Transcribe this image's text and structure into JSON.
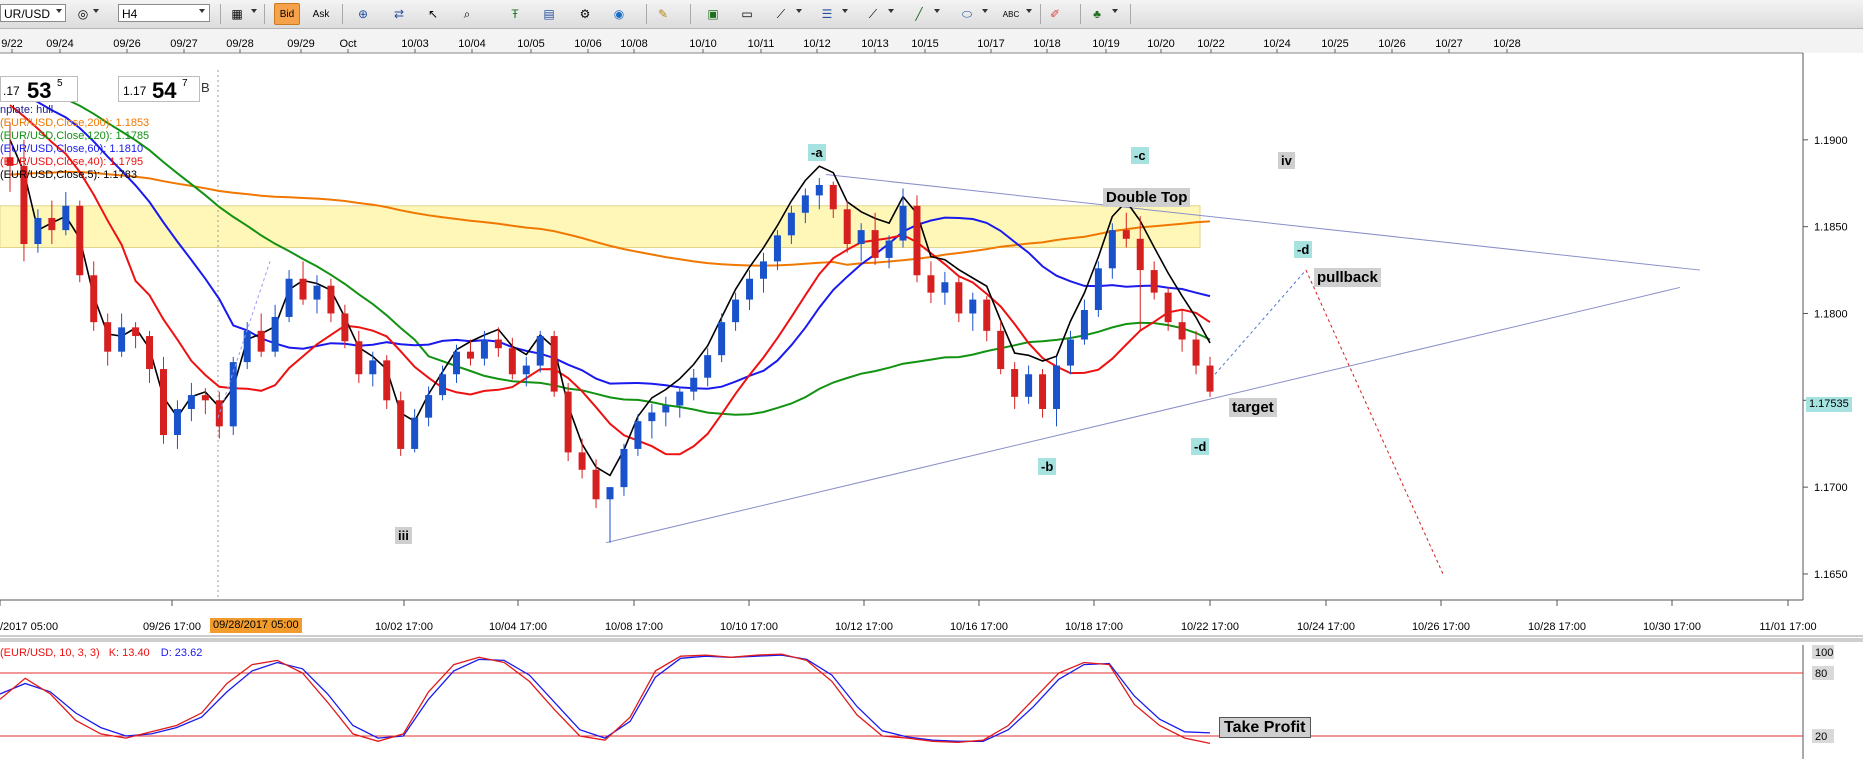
{
  "toolbar": {
    "symbol": "UR/USD",
    "timeframe": "H4",
    "bid_label": "Bid",
    "ask_label": "Ask",
    "icons": [
      "drawing-icon",
      "bar-chart-icon",
      "candles-icon",
      "zoom-icon",
      "template-icon",
      "indicator-icon",
      "settings-icon",
      "globe-icon",
      "ruler-icon",
      "picture-icon",
      "window-icon",
      "trendline-icon",
      "hline-icon",
      "fib-icon",
      "line-icon",
      "ellipse-icon",
      "text-abc-icon",
      "eraser-icon",
      "objects-icon"
    ]
  },
  "quote": {
    "bid_prefix": ".17",
    "bid_big": "53",
    "bid_sup": "5",
    "ask_prefix": "1.17",
    "ask_big": "54",
    "ask_sup": "7",
    "tag": "B"
  },
  "indicators": [
    {
      "text": "nplate: hull",
      "color": "#1a1a8c"
    },
    {
      "text": "(EUR/USD,Close,200): 1.1853",
      "color": "#f07800"
    },
    {
      "text": "(EUR/USD,Close,120): 1.1785",
      "color": "#129212"
    },
    {
      "text": "(EUR/USD,Close,60): 1.1810",
      "color": "#1a1aee"
    },
    {
      "text": "(EUR/USD,Close,40): 1.1795",
      "color": "#ee1111"
    },
    {
      "text": "(EUR/USD,Close,5): 1.1783",
      "color": "#000000"
    }
  ],
  "annotations": {
    "a": "-a",
    "b": "-b",
    "c": "-c",
    "d_upper": "-d",
    "d_lower": "-d",
    "iv": "iv",
    "iii": "iii",
    "double_top": "Double Top",
    "pullback": "pullback",
    "target": "target",
    "take_profit": "Take Profit"
  },
  "oscillator_label": {
    "name": "(EUR/USD, 10, 3, 3)",
    "k": "K: 13.40",
    "d": "D: 23.62"
  },
  "chart_data": {
    "type": "line",
    "instrument": "EUR/USD",
    "timeframe": "H4",
    "top_date_labels": [
      "9/22",
      "09/24",
      "09/26",
      "09/27",
      "09/28",
      "09/29",
      "Oct",
      "10/03",
      "10/04",
      "10/05",
      "10/06",
      "10/08",
      "10/10",
      "10/11",
      "10/12",
      "10/13",
      "10/15",
      "10/17",
      "10/18",
      "10/19",
      "10/20",
      "10/22",
      "10/24",
      "10/25",
      "10/26",
      "10/27",
      "10/28"
    ],
    "bottom_time_labels": [
      "/2017 05:00",
      "09/26 17:00",
      "10/02 17:00",
      "10/04 17:00",
      "10/08 17:00",
      "10/10 17:00",
      "10/12 17:00",
      "10/16 17:00",
      "10/18 17:00",
      "10/22 17:00",
      "10/24 17:00",
      "10/26 17:00",
      "10/28 17:00",
      "10/30 17:00",
      "11/01 17:00"
    ],
    "cursor_time": "09/28/2017 05:00",
    "price_axis": {
      "ticks": [
        "1.1900",
        "1.1850",
        "1.1800",
        "1.1750",
        "1.1700",
        "1.1650"
      ],
      "ylim": [
        1.1635,
        1.195
      ]
    },
    "current_price": "1.17535",
    "resistance_zone": [
      1.1838,
      1.1862
    ],
    "candles": [
      [
        1.189,
        1.191,
        1.187,
        1.1885
      ],
      [
        1.1885,
        1.19,
        1.183,
        1.184
      ],
      [
        1.184,
        1.186,
        1.1835,
        1.1855
      ],
      [
        1.1855,
        1.1865,
        1.184,
        1.1848
      ],
      [
        1.1848,
        1.187,
        1.1845,
        1.1862
      ],
      [
        1.1862,
        1.1865,
        1.1818,
        1.1822
      ],
      [
        1.1822,
        1.183,
        1.179,
        1.1795
      ],
      [
        1.1795,
        1.18,
        1.177,
        1.1778
      ],
      [
        1.1778,
        1.18,
        1.1775,
        1.1792
      ],
      [
        1.1792,
        1.1795,
        1.178,
        1.1787
      ],
      [
        1.1787,
        1.179,
        1.176,
        1.1768
      ],
      [
        1.1768,
        1.1775,
        1.1725,
        1.173
      ],
      [
        1.173,
        1.175,
        1.1722,
        1.1745
      ],
      [
        1.1745,
        1.176,
        1.1738,
        1.1753
      ],
      [
        1.1753,
        1.1757,
        1.1742,
        1.175
      ],
      [
        1.175,
        1.1755,
        1.1728,
        1.1735
      ],
      [
        1.1735,
        1.1775,
        1.173,
        1.1772
      ],
      [
        1.1772,
        1.1795,
        1.1768,
        1.179
      ],
      [
        1.179,
        1.18,
        1.1775,
        1.1778
      ],
      [
        1.1778,
        1.1805,
        1.1775,
        1.1798
      ],
      [
        1.1798,
        1.1825,
        1.1795,
        1.182
      ],
      [
        1.182,
        1.183,
        1.1805,
        1.1808
      ],
      [
        1.1808,
        1.1822,
        1.18,
        1.1816
      ],
      [
        1.1816,
        1.182,
        1.1795,
        1.18
      ],
      [
        1.18,
        1.1805,
        1.178,
        1.1784
      ],
      [
        1.1784,
        1.179,
        1.176,
        1.1765
      ],
      [
        1.1765,
        1.1778,
        1.1758,
        1.1773
      ],
      [
        1.1773,
        1.1776,
        1.1745,
        1.175
      ],
      [
        1.175,
        1.1755,
        1.1718,
        1.1722
      ],
      [
        1.1722,
        1.1745,
        1.172,
        1.174
      ],
      [
        1.174,
        1.1758,
        1.1735,
        1.1753
      ],
      [
        1.1753,
        1.177,
        1.175,
        1.1765
      ],
      [
        1.1765,
        1.1782,
        1.176,
        1.1778
      ],
      [
        1.1778,
        1.1785,
        1.177,
        1.1774
      ],
      [
        1.1774,
        1.179,
        1.177,
        1.1785
      ],
      [
        1.1785,
        1.1792,
        1.1775,
        1.178
      ],
      [
        1.178,
        1.1786,
        1.1762,
        1.1765
      ],
      [
        1.1765,
        1.1775,
        1.1758,
        1.177
      ],
      [
        1.177,
        1.179,
        1.1766,
        1.1787
      ],
      [
        1.1787,
        1.179,
        1.1752,
        1.1755
      ],
      [
        1.1755,
        1.176,
        1.1715,
        1.172
      ],
      [
        1.172,
        1.1728,
        1.1705,
        1.171
      ],
      [
        1.171,
        1.1716,
        1.1688,
        1.1693
      ],
      [
        1.1693,
        1.17,
        1.1668,
        1.17
      ],
      [
        1.17,
        1.1725,
        1.1695,
        1.1722
      ],
      [
        1.1722,
        1.1742,
        1.1718,
        1.1738
      ],
      [
        1.1738,
        1.1748,
        1.1728,
        1.1743
      ],
      [
        1.1743,
        1.1752,
        1.1735,
        1.1747
      ],
      [
        1.1747,
        1.1758,
        1.174,
        1.1755
      ],
      [
        1.1755,
        1.1768,
        1.175,
        1.1763
      ],
      [
        1.1763,
        1.178,
        1.1758,
        1.1776
      ],
      [
        1.1776,
        1.18,
        1.1772,
        1.1795
      ],
      [
        1.1795,
        1.1812,
        1.179,
        1.1808
      ],
      [
        1.1808,
        1.1825,
        1.1802,
        1.182
      ],
      [
        1.182,
        1.1835,
        1.1812,
        1.183
      ],
      [
        1.183,
        1.1848,
        1.1825,
        1.1845
      ],
      [
        1.1845,
        1.1862,
        1.184,
        1.1858
      ],
      [
        1.1858,
        1.1872,
        1.1852,
        1.1868
      ],
      [
        1.1868,
        1.1878,
        1.186,
        1.1874
      ],
      [
        1.1874,
        1.1876,
        1.1855,
        1.186
      ],
      [
        1.186,
        1.1865,
        1.1835,
        1.184
      ],
      [
        1.184,
        1.1852,
        1.183,
        1.1848
      ],
      [
        1.1848,
        1.1858,
        1.1828,
        1.1832
      ],
      [
        1.1832,
        1.1845,
        1.1826,
        1.1842
      ],
      [
        1.1842,
        1.1872,
        1.1838,
        1.1862
      ],
      [
        1.1862,
        1.1868,
        1.1818,
        1.1822
      ],
      [
        1.1822,
        1.183,
        1.1806,
        1.1812
      ],
      [
        1.1812,
        1.1824,
        1.1805,
        1.1818
      ],
      [
        1.1818,
        1.1822,
        1.1795,
        1.18
      ],
      [
        1.18,
        1.1812,
        1.179,
        1.1808
      ],
      [
        1.1808,
        1.181,
        1.1784,
        1.179
      ],
      [
        1.179,
        1.1796,
        1.1765,
        1.1768
      ],
      [
        1.1768,
        1.1772,
        1.1745,
        1.1752
      ],
      [
        1.1752,
        1.177,
        1.1748,
        1.1765
      ],
      [
        1.1765,
        1.1768,
        1.174,
        1.1745
      ],
      [
        1.1745,
        1.1775,
        1.1735,
        1.177
      ],
      [
        1.177,
        1.179,
        1.1765,
        1.1785
      ],
      [
        1.1785,
        1.1808,
        1.1782,
        1.1802
      ],
      [
        1.1802,
        1.183,
        1.1798,
        1.1826
      ],
      [
        1.1826,
        1.1852,
        1.182,
        1.1848
      ],
      [
        1.1848,
        1.1858,
        1.1838,
        1.1843
      ],
      [
        1.1843,
        1.1856,
        1.179,
        1.1825
      ],
      [
        1.1825,
        1.183,
        1.1808,
        1.1812
      ],
      [
        1.1812,
        1.1815,
        1.179,
        1.1795
      ],
      [
        1.1795,
        1.1802,
        1.1778,
        1.1785
      ],
      [
        1.1785,
        1.179,
        1.1765,
        1.177
      ],
      [
        1.177,
        1.1775,
        1.1752,
        1.1755
      ]
    ],
    "moving_averages": [
      {
        "name": "MA 200",
        "color": "#f07800",
        "start": 1.188,
        "end": 1.1853
      },
      {
        "name": "MA 120",
        "color": "#129212",
        "start": 1.1935,
        "end": 1.1785
      },
      {
        "name": "MA 60",
        "color": "#1a1aee",
        "start": 1.193,
        "end": 1.181
      },
      {
        "name": "MA 40",
        "color": "#ee1111",
        "start": 1.192,
        "end": 1.1795
      },
      {
        "name": "MA 5",
        "color": "#000000",
        "start": 1.19,
        "end": 1.1783
      }
    ],
    "stochastic": {
      "levels": [
        20,
        80
      ],
      "axis_ticks": [
        "100",
        "80",
        "20"
      ],
      "k": [
        55,
        75,
        60,
        35,
        22,
        18,
        24,
        30,
        42,
        70,
        88,
        92,
        80,
        52,
        22,
        15,
        22,
        62,
        88,
        95,
        90,
        72,
        45,
        20,
        16,
        38,
        82,
        96,
        97,
        95,
        97,
        98,
        92,
        72,
        40,
        20,
        18,
        15,
        14,
        16,
        30,
        55,
        80,
        90,
        88,
        50,
        30,
        18,
        13
      ],
      "d": [
        60,
        70,
        62,
        42,
        28,
        20,
        22,
        28,
        38,
        62,
        82,
        90,
        84,
        60,
        30,
        18,
        20,
        55,
        82,
        93,
        92,
        78,
        52,
        26,
        18,
        34,
        76,
        94,
        96,
        95,
        96,
        97,
        93,
        78,
        48,
        25,
        19,
        16,
        15,
        15,
        26,
        48,
        74,
        88,
        89,
        58,
        36,
        24,
        23
      ]
    }
  }
}
